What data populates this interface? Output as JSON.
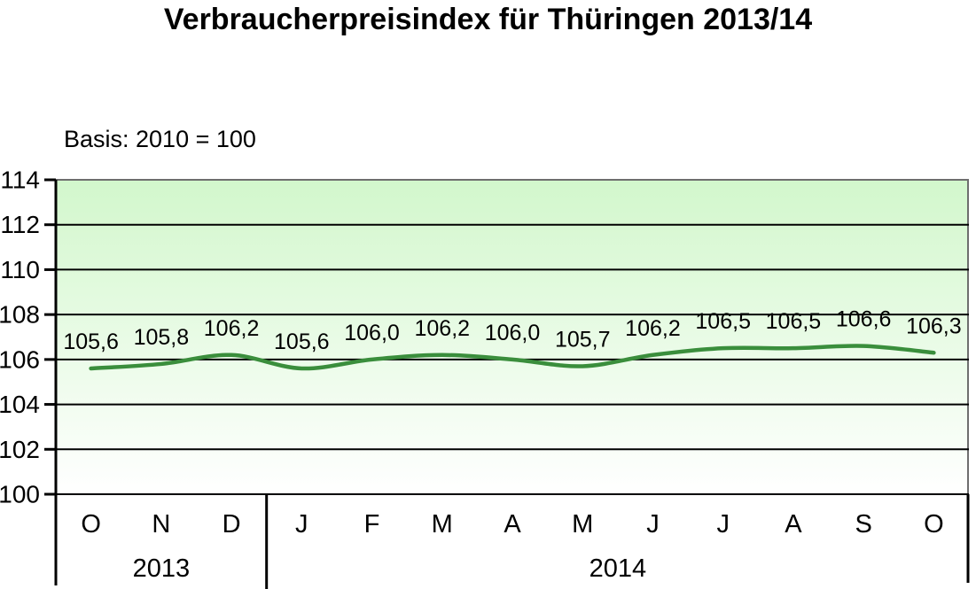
{
  "page": {
    "title": "Verbraucherpreisindex für Thüringen 2013/14",
    "subtitle": "Basis: 2010 = 100"
  },
  "chart_data": {
    "type": "line",
    "title": "Verbraucherpreisindex für Thüringen 2013/14",
    "subtitle": "Basis: 2010 = 100",
    "categories": [
      "O",
      "N",
      "D",
      "J",
      "F",
      "M",
      "A",
      "M",
      "J",
      "J",
      "A",
      "S",
      "O"
    ],
    "year_groups": [
      {
        "label": "2013",
        "count": 3
      },
      {
        "label": "2014",
        "count": 10
      }
    ],
    "series": [
      {
        "name": "Verbraucherpreisindex",
        "values": [
          105.6,
          105.8,
          106.2,
          105.6,
          106.0,
          106.2,
          106.0,
          105.7,
          106.2,
          106.5,
          106.5,
          106.6,
          106.3
        ],
        "data_labels": [
          "105,6",
          "105,8",
          "106,2",
          "105,6",
          "106,0",
          "106,2",
          "106,0",
          "105,7",
          "106,2",
          "106,5",
          "106,5",
          "106,6",
          "106,3"
        ]
      }
    ],
    "ylim": [
      100,
      114
    ],
    "yticks": [
      100,
      102,
      104,
      106,
      108,
      110,
      112,
      114
    ],
    "xlabel": "",
    "ylabel": "",
    "grid": true,
    "legend_position": "none",
    "smooth_line": true,
    "colors": {
      "line": "#3a8e3c",
      "plot_bg_top": "#d2f7cc",
      "plot_bg_bottom": "#ffffff",
      "gridline": "#000000",
      "axis": "#000000",
      "plot_border": "#6e6e6e",
      "text": "#000000"
    }
  }
}
